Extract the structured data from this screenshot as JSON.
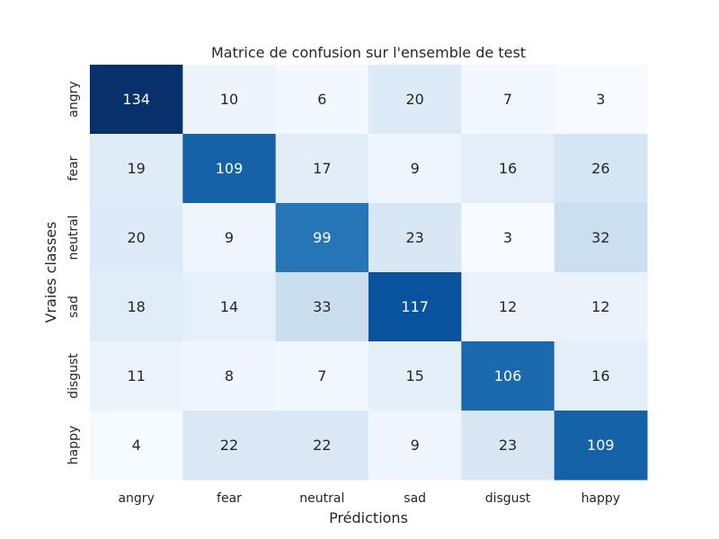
{
  "chart_data": {
    "type": "heatmap",
    "title": "Matrice de confusion sur l'ensemble de test",
    "xlabel": "Prédictions",
    "ylabel": "Vraies classes",
    "x_categories": [
      "angry",
      "fear",
      "neutral",
      "sad",
      "disgust",
      "happy"
    ],
    "y_categories": [
      "angry",
      "fear",
      "neutral",
      "sad",
      "disgust",
      "happy"
    ],
    "values": [
      [
        134,
        10,
        6,
        20,
        7,
        3
      ],
      [
        19,
        109,
        17,
        9,
        16,
        26
      ],
      [
        20,
        9,
        99,
        23,
        3,
        32
      ],
      [
        18,
        14,
        33,
        117,
        12,
        12
      ],
      [
        11,
        8,
        7,
        15,
        106,
        16
      ],
      [
        4,
        22,
        22,
        9,
        23,
        109
      ]
    ],
    "colormap": "Blues",
    "grid": false,
    "colorbar": false
  }
}
